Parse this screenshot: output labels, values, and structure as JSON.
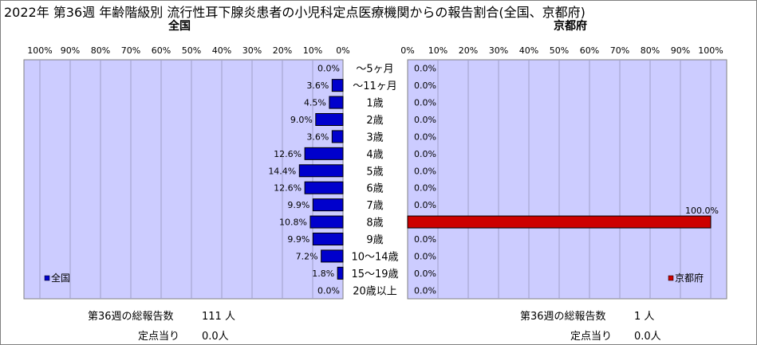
{
  "title": "2022年 第36週 年齢階級別 流行性耳下腺炎患者の小児科定点医療機関からの報告割合(全国、京都府)",
  "age_groups": [
    "～5ヶ月",
    "～11ヶ月",
    "1歳",
    "2歳",
    "3歳",
    "4歳",
    "5歳",
    "6歳",
    "7歳",
    "8歳",
    "9歳",
    "10～14歳",
    "15～19歳",
    "20歳以上"
  ],
  "chart_data": [
    {
      "type": "bar",
      "orientation": "horizontal",
      "direction": "right-to-left",
      "title": "全国",
      "categories": [
        "～5ヶ月",
        "～11ヶ月",
        "1歳",
        "2歳",
        "3歳",
        "4歳",
        "5歳",
        "6歳",
        "7歳",
        "8歳",
        "9歳",
        "10～14歳",
        "15～19歳",
        "20歳以上"
      ],
      "series": [
        {
          "name": "全国",
          "color": "#0000cc",
          "values": [
            0.0,
            3.6,
            4.5,
            9.0,
            3.6,
            12.6,
            14.4,
            12.6,
            9.9,
            10.8,
            9.9,
            7.2,
            1.8,
            0.0
          ],
          "labels": [
            "0.0%",
            "3.6%",
            "4.5%",
            "9.0%",
            "3.6%",
            "12.6%",
            "14.4%",
            "12.6%",
            "9.9%",
            "10.8%",
            "9.9%",
            "7.2%",
            "1.8%",
            "0.0%"
          ]
        }
      ],
      "xlim": [
        0,
        100
      ],
      "ticks": [
        "100%",
        "90%",
        "80%",
        "70%",
        "60%",
        "50%",
        "40%",
        "30%",
        "20%",
        "10%",
        "0%"
      ],
      "legend": "bottom-left",
      "grid": true,
      "plot_background": "#ccccff",
      "summary": {
        "total_label": "第36週の総報告数",
        "total_value": "111 人",
        "per_label": "定点当り",
        "per_value": "0.0人"
      }
    },
    {
      "type": "bar",
      "orientation": "horizontal",
      "direction": "left-to-right",
      "title": "京都府",
      "categories": [
        "～5ヶ月",
        "～11ヶ月",
        "1歳",
        "2歳",
        "3歳",
        "4歳",
        "5歳",
        "6歳",
        "7歳",
        "8歳",
        "9歳",
        "10～14歳",
        "15～19歳",
        "20歳以上"
      ],
      "series": [
        {
          "name": "京都府",
          "color": "#cc0000",
          "values": [
            0.0,
            0.0,
            0.0,
            0.0,
            0.0,
            0.0,
            0.0,
            0.0,
            0.0,
            100.0,
            0.0,
            0.0,
            0.0,
            0.0
          ],
          "labels": [
            "0.0%",
            "0.0%",
            "0.0%",
            "0.0%",
            "0.0%",
            "0.0%",
            "0.0%",
            "0.0%",
            "0.0%",
            "100.0%",
            "0.0%",
            "0.0%",
            "0.0%",
            "0.0%"
          ]
        }
      ],
      "xlim": [
        0,
        100
      ],
      "ticks": [
        "0%",
        "10%",
        "20%",
        "30%",
        "40%",
        "50%",
        "60%",
        "70%",
        "80%",
        "90%",
        "100%"
      ],
      "legend": "bottom-right",
      "grid": true,
      "plot_background": "#ccccff",
      "summary": {
        "total_label": "第36週の総報告数",
        "total_value": "1 人",
        "per_label": "定点当り",
        "per_value": "0.0人"
      }
    }
  ]
}
